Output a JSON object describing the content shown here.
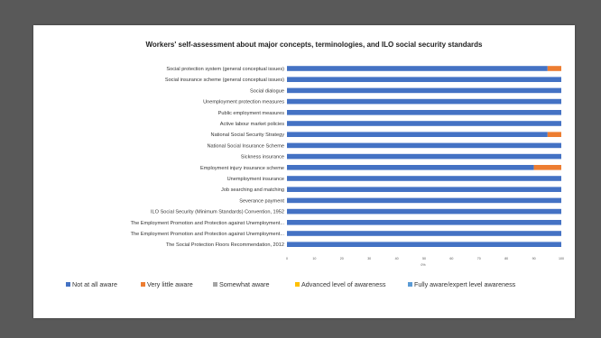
{
  "chart_data": {
    "type": "bar",
    "orientation": "horizontal",
    "stacked": true,
    "title": "Workers' self-assessment about major concepts, terminologies, and ILO social security standards",
    "xlabel": "0%",
    "xlim": [
      0,
      100
    ],
    "x_ticks": [
      "0",
      "10",
      "20",
      "30",
      "40",
      "50",
      "60",
      "70",
      "80",
      "90",
      "100"
    ],
    "grid": false,
    "legend_position": "bottom",
    "categories": [
      "Social protection system (general conceptual issues)",
      "Social insurance scheme (general conceptual issues)",
      "Social dialogue",
      "Unemployment protection measures",
      "Public employment measures",
      "Active labour market policies",
      "National Social Security Strategy",
      "National Social Insurance Scheme",
      "Sickness insurance",
      "Employment injury insurance scheme",
      "Unemployment insurance",
      "Job searching and matching",
      "Severance payment",
      "ILO Social Security (Minimum Standards) Convention, 1952",
      "The Employment Promotion and Protection against Unemployment...",
      "The Employment Promotion and Protection against Unemployment...",
      "The Social Protection Floors Recommendation, 2012"
    ],
    "series": [
      {
        "name": "Not at all aware",
        "color": "#4472C4",
        "values": [
          95,
          100,
          100,
          100,
          100,
          100,
          95,
          100,
          100,
          90,
          100,
          100,
          100,
          100,
          100,
          100,
          100
        ]
      },
      {
        "name": "Very little aware",
        "color": "#ED7D31",
        "values": [
          5,
          0,
          0,
          0,
          0,
          0,
          5,
          0,
          0,
          10,
          0,
          0,
          0,
          0,
          0,
          0,
          0
        ]
      },
      {
        "name": "Somewhat aware",
        "color": "#A5A5A5",
        "values": [
          0,
          0,
          0,
          0,
          0,
          0,
          0,
          0,
          0,
          0,
          0,
          0,
          0,
          0,
          0,
          0,
          0
        ]
      },
      {
        "name": "Advanced level of awareness",
        "color": "#FFC000",
        "values": [
          0,
          0,
          0,
          0,
          0,
          0,
          0,
          0,
          0,
          0,
          0,
          0,
          0,
          0,
          0,
          0,
          0
        ]
      },
      {
        "name": "Fully aware/expert level awareness",
        "color": "#5B9BD5",
        "values": [
          0,
          0,
          0,
          0,
          0,
          0,
          0,
          0,
          0,
          0,
          0,
          0,
          0,
          0,
          0,
          0,
          0
        ]
      }
    ]
  }
}
